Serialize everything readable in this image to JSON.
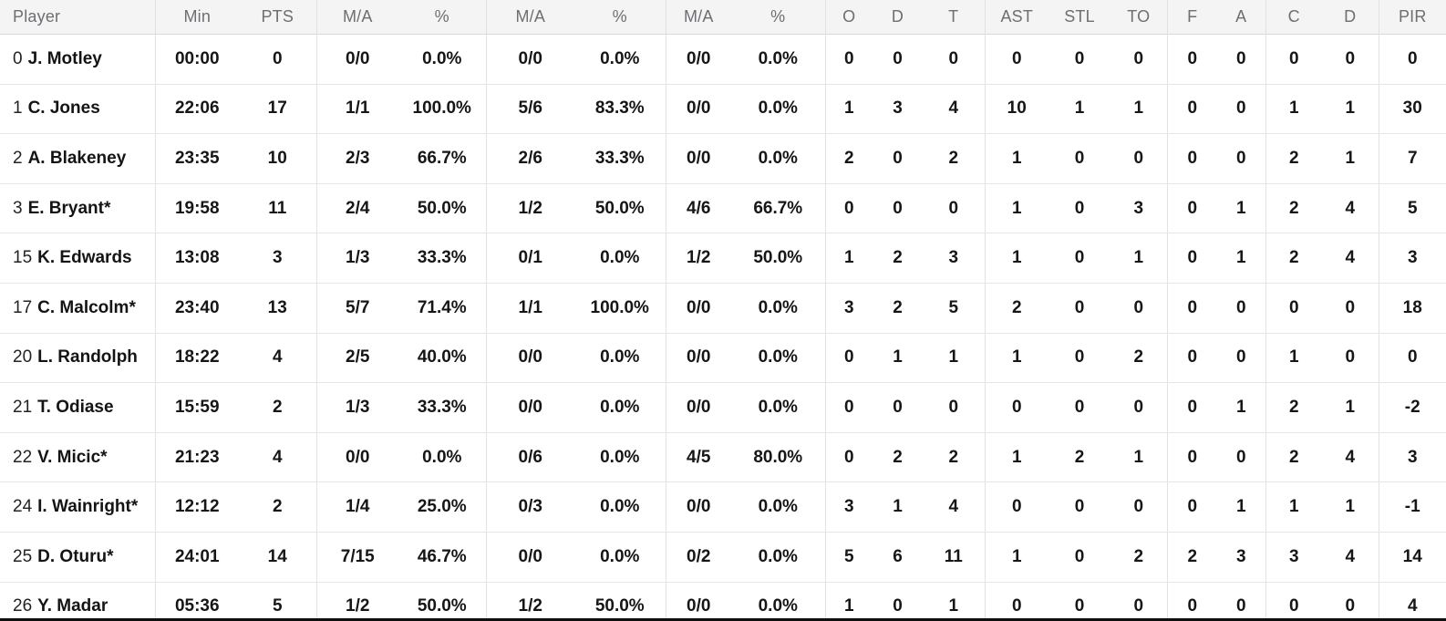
{
  "colors": {
    "header_bg": "#f4f4f5",
    "header_text": "#6e6e73",
    "row_bg": "#ffffff",
    "data_text": "#161616",
    "grid_line": "#e6e6e6",
    "bottom_edge": "#0e0e0e"
  },
  "table": {
    "columns": [
      {
        "key": "player",
        "label": "Player"
      },
      {
        "key": "min",
        "label": "Min"
      },
      {
        "key": "pts",
        "label": "PTS"
      },
      {
        "key": "fg2_ma",
        "label": "M/A"
      },
      {
        "key": "fg2_pct",
        "label": "%"
      },
      {
        "key": "fg3_ma",
        "label": "M/A"
      },
      {
        "key": "fg3_pct",
        "label": "%"
      },
      {
        "key": "ft_ma",
        "label": "M/A"
      },
      {
        "key": "ft_pct",
        "label": "%"
      },
      {
        "key": "reb_o",
        "label": "O"
      },
      {
        "key": "reb_d",
        "label": "D"
      },
      {
        "key": "reb_t",
        "label": "T"
      },
      {
        "key": "ast",
        "label": "AST"
      },
      {
        "key": "stl",
        "label": "STL"
      },
      {
        "key": "to",
        "label": "TO"
      },
      {
        "key": "f",
        "label": "F"
      },
      {
        "key": "a",
        "label": "A"
      },
      {
        "key": "c",
        "label": "C"
      },
      {
        "key": "d",
        "label": "D"
      },
      {
        "key": "pir",
        "label": "PIR"
      }
    ],
    "rows": [
      {
        "number": "0",
        "name": "J. Motley",
        "min": "00:00",
        "pts": "0",
        "fg2_ma": "0/0",
        "fg2_pct": "0.0%",
        "fg3_ma": "0/0",
        "fg3_pct": "0.0%",
        "ft_ma": "0/0",
        "ft_pct": "0.0%",
        "reb_o": "0",
        "reb_d": "0",
        "reb_t": "0",
        "ast": "0",
        "stl": "0",
        "to": "0",
        "f": "0",
        "a": "0",
        "c": "0",
        "d": "0",
        "pir": "0"
      },
      {
        "number": "1",
        "name": "C. Jones",
        "min": "22:06",
        "pts": "17",
        "fg2_ma": "1/1",
        "fg2_pct": "100.0%",
        "fg3_ma": "5/6",
        "fg3_pct": "83.3%",
        "ft_ma": "0/0",
        "ft_pct": "0.0%",
        "reb_o": "1",
        "reb_d": "3",
        "reb_t": "4",
        "ast": "10",
        "stl": "1",
        "to": "1",
        "f": "0",
        "a": "0",
        "c": "1",
        "d": "1",
        "pir": "30"
      },
      {
        "number": "2",
        "name": "A. Blakeney",
        "min": "23:35",
        "pts": "10",
        "fg2_ma": "2/3",
        "fg2_pct": "66.7%",
        "fg3_ma": "2/6",
        "fg3_pct": "33.3%",
        "ft_ma": "0/0",
        "ft_pct": "0.0%",
        "reb_o": "2",
        "reb_d": "0",
        "reb_t": "2",
        "ast": "1",
        "stl": "0",
        "to": "0",
        "f": "0",
        "a": "0",
        "c": "2",
        "d": "1",
        "pir": "7"
      },
      {
        "number": "3",
        "name": "E. Bryant*",
        "min": "19:58",
        "pts": "11",
        "fg2_ma": "2/4",
        "fg2_pct": "50.0%",
        "fg3_ma": "1/2",
        "fg3_pct": "50.0%",
        "ft_ma": "4/6",
        "ft_pct": "66.7%",
        "reb_o": "0",
        "reb_d": "0",
        "reb_t": "0",
        "ast": "1",
        "stl": "0",
        "to": "3",
        "f": "0",
        "a": "1",
        "c": "2",
        "d": "4",
        "pir": "5"
      },
      {
        "number": "15",
        "name": "K. Edwards",
        "min": "13:08",
        "pts": "3",
        "fg2_ma": "1/3",
        "fg2_pct": "33.3%",
        "fg3_ma": "0/1",
        "fg3_pct": "0.0%",
        "ft_ma": "1/2",
        "ft_pct": "50.0%",
        "reb_o": "1",
        "reb_d": "2",
        "reb_t": "3",
        "ast": "1",
        "stl": "0",
        "to": "1",
        "f": "0",
        "a": "1",
        "c": "2",
        "d": "4",
        "pir": "3"
      },
      {
        "number": "17",
        "name": "C. Malcolm*",
        "min": "23:40",
        "pts": "13",
        "fg2_ma": "5/7",
        "fg2_pct": "71.4%",
        "fg3_ma": "1/1",
        "fg3_pct": "100.0%",
        "ft_ma": "0/0",
        "ft_pct": "0.0%",
        "reb_o": "3",
        "reb_d": "2",
        "reb_t": "5",
        "ast": "2",
        "stl": "0",
        "to": "0",
        "f": "0",
        "a": "0",
        "c": "0",
        "d": "0",
        "pir": "18"
      },
      {
        "number": "20",
        "name": "L. Randolph",
        "min": "18:22",
        "pts": "4",
        "fg2_ma": "2/5",
        "fg2_pct": "40.0%",
        "fg3_ma": "0/0",
        "fg3_pct": "0.0%",
        "ft_ma": "0/0",
        "ft_pct": "0.0%",
        "reb_o": "0",
        "reb_d": "1",
        "reb_t": "1",
        "ast": "1",
        "stl": "0",
        "to": "2",
        "f": "0",
        "a": "0",
        "c": "1",
        "d": "0",
        "pir": "0"
      },
      {
        "number": "21",
        "name": "T. Odiase",
        "min": "15:59",
        "pts": "2",
        "fg2_ma": "1/3",
        "fg2_pct": "33.3%",
        "fg3_ma": "0/0",
        "fg3_pct": "0.0%",
        "ft_ma": "0/0",
        "ft_pct": "0.0%",
        "reb_o": "0",
        "reb_d": "0",
        "reb_t": "0",
        "ast": "0",
        "stl": "0",
        "to": "0",
        "f": "0",
        "a": "1",
        "c": "2",
        "d": "1",
        "pir": "-2"
      },
      {
        "number": "22",
        "name": "V. Micic*",
        "min": "21:23",
        "pts": "4",
        "fg2_ma": "0/0",
        "fg2_pct": "0.0%",
        "fg3_ma": "0/6",
        "fg3_pct": "0.0%",
        "ft_ma": "4/5",
        "ft_pct": "80.0%",
        "reb_o": "0",
        "reb_d": "2",
        "reb_t": "2",
        "ast": "1",
        "stl": "2",
        "to": "1",
        "f": "0",
        "a": "0",
        "c": "2",
        "d": "4",
        "pir": "3"
      },
      {
        "number": "24",
        "name": "I. Wainright*",
        "min": "12:12",
        "pts": "2",
        "fg2_ma": "1/4",
        "fg2_pct": "25.0%",
        "fg3_ma": "0/3",
        "fg3_pct": "0.0%",
        "ft_ma": "0/0",
        "ft_pct": "0.0%",
        "reb_o": "3",
        "reb_d": "1",
        "reb_t": "4",
        "ast": "0",
        "stl": "0",
        "to": "0",
        "f": "0",
        "a": "1",
        "c": "1",
        "d": "1",
        "pir": "-1"
      },
      {
        "number": "25",
        "name": "D. Oturu*",
        "min": "24:01",
        "pts": "14",
        "fg2_ma": "7/15",
        "fg2_pct": "46.7%",
        "fg3_ma": "0/0",
        "fg3_pct": "0.0%",
        "ft_ma": "0/2",
        "ft_pct": "0.0%",
        "reb_o": "5",
        "reb_d": "6",
        "reb_t": "11",
        "ast": "1",
        "stl": "0",
        "to": "2",
        "f": "2",
        "a": "3",
        "c": "3",
        "d": "4",
        "pir": "14"
      },
      {
        "number": "26",
        "name": "Y. Madar",
        "min": "05:36",
        "pts": "5",
        "fg2_ma": "1/2",
        "fg2_pct": "50.0%",
        "fg3_ma": "1/2",
        "fg3_pct": "50.0%",
        "ft_ma": "0/0",
        "ft_pct": "0.0%",
        "reb_o": "1",
        "reb_d": "0",
        "reb_t": "1",
        "ast": "0",
        "stl": "0",
        "to": "0",
        "f": "0",
        "a": "0",
        "c": "0",
        "d": "0",
        "pir": "4"
      }
    ]
  }
}
